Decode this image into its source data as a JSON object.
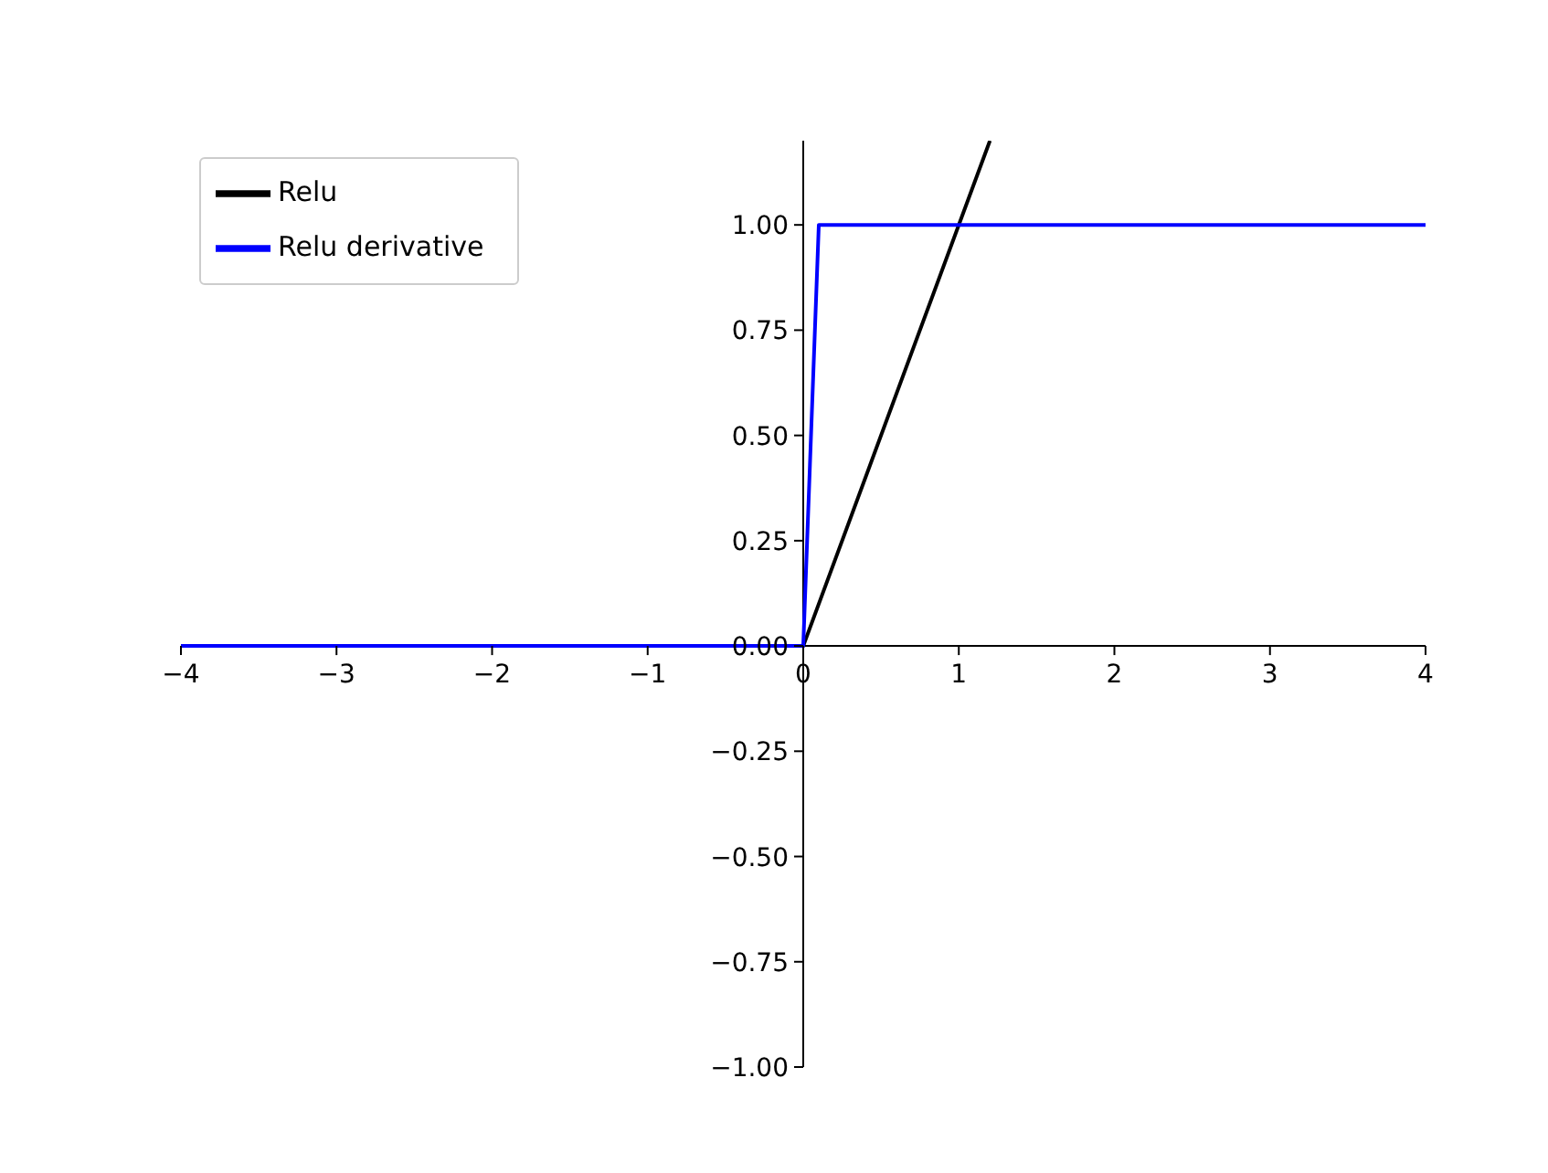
{
  "chart_data": {
    "type": "line",
    "xlim": [
      -4,
      4
    ],
    "ylim": [
      -1,
      1.2
    ],
    "xticks": [
      {
        "value": -4,
        "label": "−4"
      },
      {
        "value": -3,
        "label": "−3"
      },
      {
        "value": -2,
        "label": "−2"
      },
      {
        "value": -1,
        "label": "−1"
      },
      0,
      1,
      2,
      3,
      4
    ],
    "yticks": [
      {
        "value": -1,
        "label": "−1.00"
      },
      {
        "value": -0.75,
        "label": "−0.75"
      },
      {
        "value": -0.5,
        "label": "−0.50"
      },
      {
        "value": -0.25,
        "label": "−0.25"
      },
      {
        "value": 0,
        "label": "0.00"
      },
      {
        "value": 0.25,
        "label": "0.25"
      },
      {
        "value": 0.5,
        "label": "0.50"
      },
      {
        "value": 0.75,
        "label": "0.75"
      },
      {
        "value": 1,
        "label": "1.00"
      }
    ],
    "legend": "top left",
    "series": [
      {
        "name": "Relu",
        "color": "#000000",
        "x": [
          -4,
          0,
          1.2
        ],
        "values": [
          0,
          0,
          1.2
        ]
      },
      {
        "name": "Relu derivative",
        "color": "#0000ff",
        "x": [
          -4,
          0,
          0.1,
          4
        ],
        "values": [
          0,
          0,
          1,
          1
        ]
      }
    ]
  }
}
